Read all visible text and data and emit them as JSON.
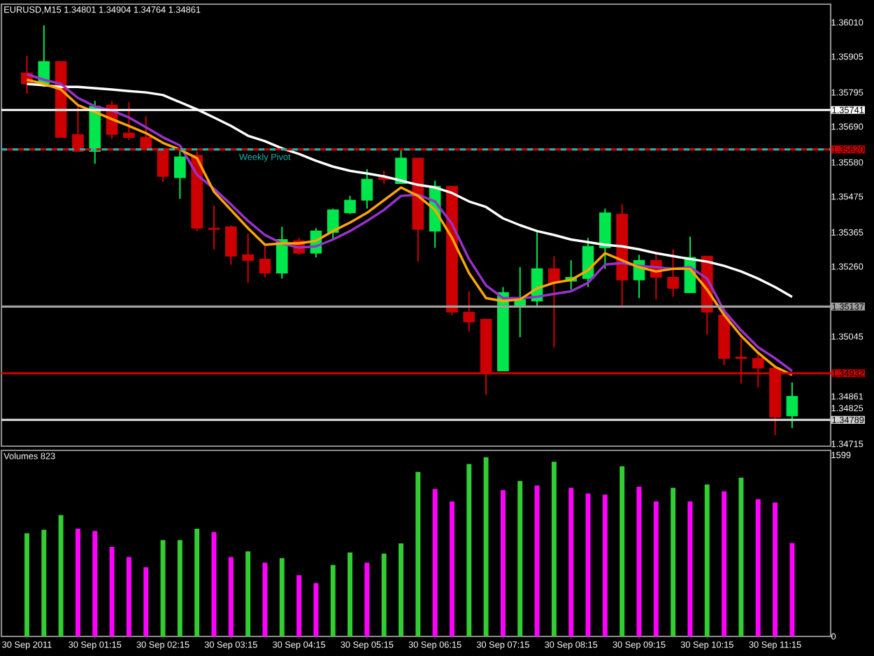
{
  "chart_data": [
    {
      "type": "candlestick",
      "title": "EURUSD,M15  1.34801 1.34904 1.34764 1.34861",
      "categories": [
        null,
        null,
        null,
        null,
        null,
        null,
        null,
        null,
        null,
        null,
        null,
        null,
        null,
        null,
        null,
        null,
        null,
        null,
        null,
        null,
        null,
        null,
        null,
        null,
        null,
        null,
        null,
        null,
        null,
        null,
        null,
        null,
        null,
        null,
        null,
        null,
        null,
        null,
        null,
        null,
        null,
        null,
        null,
        null,
        null,
        null
      ],
      "ohlc": [
        [
          1.35855,
          1.35907,
          1.35791,
          1.35821
        ],
        [
          1.35821,
          1.36001,
          1.35812,
          1.3589
        ],
        [
          1.3589,
          1.3589,
          1.35657,
          1.35657
        ],
        [
          1.35666,
          1.35756,
          1.35614,
          1.35614
        ],
        [
          1.35614,
          1.35769,
          1.35576,
          1.35752
        ],
        [
          1.35756,
          1.35769,
          1.35653,
          1.35666
        ],
        [
          1.3567,
          1.35765,
          1.35649,
          1.35657
        ],
        [
          1.35657,
          1.35722,
          1.35623,
          1.35623
        ],
        [
          1.35623,
          1.35623,
          1.3552,
          1.35537
        ],
        [
          1.35533,
          1.35614,
          1.35468,
          1.35597
        ],
        [
          1.35602,
          1.35614,
          1.35369,
          1.35378
        ],
        [
          1.35378,
          1.35447,
          1.35313,
          1.35374
        ],
        [
          1.35382,
          1.35387,
          1.35266,
          1.35292
        ],
        [
          1.35296,
          1.35361,
          1.3521,
          1.35279
        ],
        [
          1.35283,
          1.35322,
          1.35227,
          1.3524
        ],
        [
          1.3524,
          1.35382,
          1.35223,
          1.35343
        ],
        [
          1.35339,
          1.35348,
          1.35296,
          1.35301
        ],
        [
          1.35301,
          1.35378,
          1.35288,
          1.35369
        ],
        [
          1.35365,
          1.35438,
          1.35343,
          1.35434
        ],
        [
          1.35425,
          1.35477,
          1.35421,
          1.35464
        ],
        [
          1.35464,
          1.35559,
          1.35438,
          1.35528
        ],
        [
          1.35533,
          1.35554,
          1.35515,
          1.35528
        ],
        [
          1.35515,
          1.35623,
          1.35515,
          1.35593
        ],
        [
          1.35593,
          1.35593,
          1.35275,
          1.35374
        ],
        [
          1.35369,
          1.35524,
          1.35318,
          1.35507
        ],
        [
          1.35507,
          1.35507,
          1.35111,
          1.3512
        ],
        [
          1.3512,
          1.35184,
          1.3506,
          1.3509
        ],
        [
          1.35098,
          1.35098,
          1.34866,
          1.34935
        ],
        [
          1.34939,
          1.35197,
          1.34939,
          1.3518
        ],
        [
          1.35141,
          1.35258,
          1.35043,
          1.35159
        ],
        [
          1.35154,
          1.35365,
          1.35133,
          1.35253
        ],
        [
          1.35253,
          1.35292,
          1.35012,
          1.3521
        ],
        [
          1.35215,
          1.35279,
          1.35189,
          1.35227
        ],
        [
          1.35223,
          1.35348,
          1.35197,
          1.35322
        ],
        [
          1.35318,
          1.35438,
          1.35253,
          1.35425
        ],
        [
          1.35421,
          1.35451,
          1.35133,
          1.35219
        ],
        [
          1.35219,
          1.35296,
          1.35163,
          1.35279
        ],
        [
          1.35279,
          1.35301,
          1.35159,
          1.35227
        ],
        [
          1.35227,
          1.35313,
          1.35167,
          1.35193
        ],
        [
          1.3518,
          1.35352,
          1.3518,
          1.35288
        ],
        [
          1.35292,
          1.35292,
          1.35051,
          1.3512
        ],
        [
          1.35111,
          1.35133,
          1.34957,
          1.34978
        ],
        [
          1.34982,
          1.35038,
          1.34901,
          1.34978
        ],
        [
          1.34978,
          1.34991,
          1.34888,
          1.34948
        ],
        [
          1.34948,
          1.34948,
          1.34742,
          1.34797
        ],
        [
          1.34801,
          1.34904,
          1.34764,
          1.34861
        ]
      ],
      "colors": [
        "#cc0000",
        "#00e64d",
        "#cc0000",
        "#cc0000",
        "#00e64d",
        "#cc0000",
        "#cc0000",
        "#cc0000",
        "#cc0000",
        "#00e64d",
        "#cc0000",
        "#cc0000",
        "#cc0000",
        "#cc0000",
        "#cc0000",
        "#00e64d",
        "#cc0000",
        "#00e64d",
        "#00e64d",
        "#00e64d",
        "#00e64d",
        "#cc0000",
        "#00e64d",
        "#cc0000",
        "#00e64d",
        "#cc0000",
        "#cc0000",
        "#cc0000",
        "#00e64d",
        "#00e64d",
        "#00e64d",
        "#cc0000",
        "#00e64d",
        "#00e64d",
        "#00e64d",
        "#cc0000",
        "#00e64d",
        "#cc0000",
        "#cc0000",
        "#00e64d",
        "#cc0000",
        "#cc0000",
        "#cc0000",
        "#cc0000",
        "#cc0000",
        "#00e64d"
      ],
      "series": [
        {
          "type": "line",
          "color": "#ffffff",
          "values": [
            1.35821,
            1.35817,
            1.35812,
            1.35812,
            1.35808,
            1.35804,
            1.35799,
            1.35795,
            1.35787,
            1.35765,
            1.35743,
            1.35718,
            1.35692,
            1.35662,
            1.35645,
            1.35623,
            1.35606,
            1.35585,
            1.35567,
            1.35554,
            1.35546,
            1.35537,
            1.35524,
            1.35511,
            1.35503,
            1.35486,
            1.3546,
            1.35443,
            1.35408,
            1.35387,
            1.35369,
            1.35357,
            1.35343,
            1.35335,
            1.35327,
            1.35322,
            1.35313,
            1.35301,
            1.35292,
            1.35283,
            1.35275,
            1.35262,
            1.35245,
            1.35223,
            1.35197,
            1.35167
          ]
        },
        {
          "type": "line",
          "color": "#9932cc",
          "values": [
            1.35851,
            1.35834,
            1.35821,
            1.35778,
            1.35752,
            1.35739,
            1.35718,
            1.35688,
            1.35657,
            1.35632,
            1.35542,
            1.35499,
            1.35451,
            1.354,
            1.35357,
            1.35331,
            1.35318,
            1.35322,
            1.35343,
            1.35369,
            1.354,
            1.35434,
            1.35477,
            1.35481,
            1.3546,
            1.35391,
            1.35283,
            1.35202,
            1.35163,
            1.35163,
            1.35167,
            1.35176,
            1.35184,
            1.3521,
            1.35266,
            1.35271,
            1.35262,
            1.35258,
            1.35253,
            1.35258,
            1.35223,
            1.35124,
            1.35064,
            1.35012,
            1.34978,
            1.34939
          ]
        },
        {
          "type": "line",
          "color": "#ffa500",
          "values": [
            1.35834,
            1.35821,
            1.35804,
            1.35756,
            1.35735,
            1.35713,
            1.35692,
            1.3567,
            1.3564,
            1.35619,
            1.35593,
            1.3549,
            1.35434,
            1.35378,
            1.35327,
            1.35331,
            1.35331,
            1.35339,
            1.35369,
            1.35395,
            1.35425,
            1.35464,
            1.35503,
            1.35477,
            1.35434,
            1.35348,
            1.3524,
            1.35163,
            1.35154,
            1.35159,
            1.35193,
            1.3521,
            1.35219,
            1.35249,
            1.35301,
            1.35279,
            1.35258,
            1.35245,
            1.35253,
            1.35253,
            1.35189,
            1.35111,
            1.35047,
            1.34995,
            1.34952,
            1.34927
          ]
        }
      ],
      "ylim": [
        1.34708,
        1.36066
      ],
      "yticks": [
        {
          "value": 1.3601,
          "label": "1.36010"
        },
        {
          "value": 1.35905,
          "label": "1.35905"
        },
        {
          "value": 1.35795,
          "label": "1.35795"
        },
        {
          "value": 1.3569,
          "label": "1.35690"
        },
        {
          "value": 1.3558,
          "label": "1.35580"
        },
        {
          "value": 1.35475,
          "label": "1.35475"
        },
        {
          "value": 1.35365,
          "label": "1.35365"
        },
        {
          "value": 1.3526,
          "label": "1.35260"
        },
        {
          "value": 1.35045,
          "label": "1.35045"
        },
        {
          "value": 1.34861,
          "label": "1.34861"
        },
        {
          "value": 1.34825,
          "label": "1.34825"
        },
        {
          "value": 1.34715,
          "label": "1.34715"
        }
      ],
      "ref_lines": [
        {
          "axis": "y",
          "value": 1.35741,
          "label": "1.35741",
          "color": "#ffffff"
        },
        {
          "axis": "y",
          "value": 1.3562,
          "label": "1.35620",
          "color": "#cc0000"
        },
        {
          "axis": "y",
          "value": 1.3562,
          "label": "Weekly Pivot",
          "color": "#20b2aa",
          "line_style": "dashed"
        },
        {
          "axis": "y",
          "value": 1.35137,
          "label": "1.35137",
          "color": "#a0a0a0"
        },
        {
          "axis": "y",
          "value": 1.34932,
          "label": "1.34932",
          "color": "#cc0000"
        },
        {
          "axis": "y",
          "value": 1.34789,
          "label": "1.34789",
          "color": "#d0d0d0"
        }
      ],
      "grid": false
    },
    {
      "type": "bar",
      "title": "Volumes 823",
      "categories": [
        "30 Sep 2011",
        null,
        null,
        null,
        "30 Sep 01:15",
        null,
        null,
        null,
        "30 Sep 02:15",
        null,
        null,
        null,
        "30 Sep 03:15",
        null,
        null,
        null,
        "30 Sep 04:15",
        null,
        null,
        null,
        "30 Sep 05:15",
        null,
        null,
        null,
        "30 Sep 06:15",
        null,
        null,
        null,
        "30 Sep 07:15",
        null,
        null,
        null,
        "30 Sep 08:15",
        null,
        null,
        null,
        "30 Sep 09:15",
        null,
        null,
        null,
        "30 Sep 10:15",
        null,
        null,
        null,
        "30 Sep 11:15",
        null
      ],
      "values": [
        910,
        940,
        1070,
        950,
        930,
        790,
        700,
        610,
        850,
        850,
        950,
        920,
        700,
        750,
        650,
        690,
        540,
        470,
        630,
        740,
        650,
        730,
        820,
        1450,
        1300,
        1190,
        1520,
        1580,
        1290,
        1370,
        1330,
        1540,
        1310,
        1260,
        1250,
        1500,
        1320,
        1190,
        1310,
        1190,
        1340,
        1280,
        1400,
        1210,
        1180,
        823
      ],
      "colors": [
        "#32cd32",
        "#32cd32",
        "#32cd32",
        "#ff00ff",
        "#ff00ff",
        "#ff00ff",
        "#ff00ff",
        "#ff00ff",
        "#32cd32",
        "#32cd32",
        "#32cd32",
        "#ff00ff",
        "#ff00ff",
        "#32cd32",
        "#ff00ff",
        "#32cd32",
        "#ff00ff",
        "#ff00ff",
        "#32cd32",
        "#32cd32",
        "#ff00ff",
        "#32cd32",
        "#32cd32",
        "#32cd32",
        "#ff00ff",
        "#ff00ff",
        "#32cd32",
        "#32cd32",
        "#ff00ff",
        "#32cd32",
        "#ff00ff",
        "#32cd32",
        "#ff00ff",
        "#ff00ff",
        "#ff00ff",
        "#32cd32",
        "#ff00ff",
        "#ff00ff",
        "#32cd32",
        "#ff00ff",
        "#32cd32",
        "#ff00ff",
        "#32cd32",
        "#ff00ff",
        "#ff00ff",
        "#ff00ff"
      ],
      "ylim": [
        0,
        1640
      ],
      "yticks": [
        0,
        1599
      ]
    }
  ]
}
